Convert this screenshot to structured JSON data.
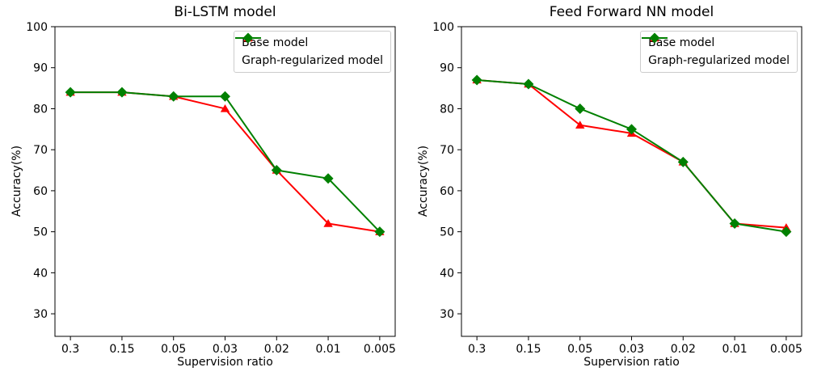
{
  "chart_data": [
    {
      "type": "line",
      "title": "Bi-LSTM model",
      "xlabel": "Supervision ratio",
      "ylabel": "Accuracy(%)",
      "categories": [
        "0.3",
        "0.15",
        "0.05",
        "0.03",
        "0.02",
        "0.01",
        "0.005"
      ],
      "yticks": [
        30,
        40,
        50,
        60,
        70,
        80,
        90,
        100
      ],
      "ylim": [
        24.5,
        100
      ],
      "grid": false,
      "legend_position": "upper right",
      "series": [
        {
          "name": "Base model",
          "color": "#ff0000",
          "marker": "triangle",
          "values": [
            84,
            84,
            83,
            80,
            65,
            52,
            50
          ]
        },
        {
          "name": "Graph-regularized model",
          "color": "#008000",
          "marker": "diamond",
          "values": [
            84,
            84,
            83,
            83,
            65,
            63,
            50
          ]
        }
      ]
    },
    {
      "type": "line",
      "title": "Feed Forward NN model",
      "xlabel": "Supervision ratio",
      "ylabel": "Accuracy(%)",
      "categories": [
        "0.3",
        "0.15",
        "0.05",
        "0.03",
        "0.02",
        "0.01",
        "0.005"
      ],
      "yticks": [
        30,
        40,
        50,
        60,
        70,
        80,
        90,
        100
      ],
      "ylim": [
        24.5,
        100
      ],
      "grid": false,
      "legend_position": "upper right",
      "series": [
        {
          "name": "Base model",
          "color": "#ff0000",
          "marker": "triangle",
          "values": [
            87,
            86,
            76,
            74,
            67,
            52,
            51
          ]
        },
        {
          "name": "Graph-regularized model",
          "color": "#008000",
          "marker": "diamond",
          "values": [
            87,
            86,
            80,
            75,
            67,
            52,
            50
          ]
        }
      ]
    }
  ]
}
